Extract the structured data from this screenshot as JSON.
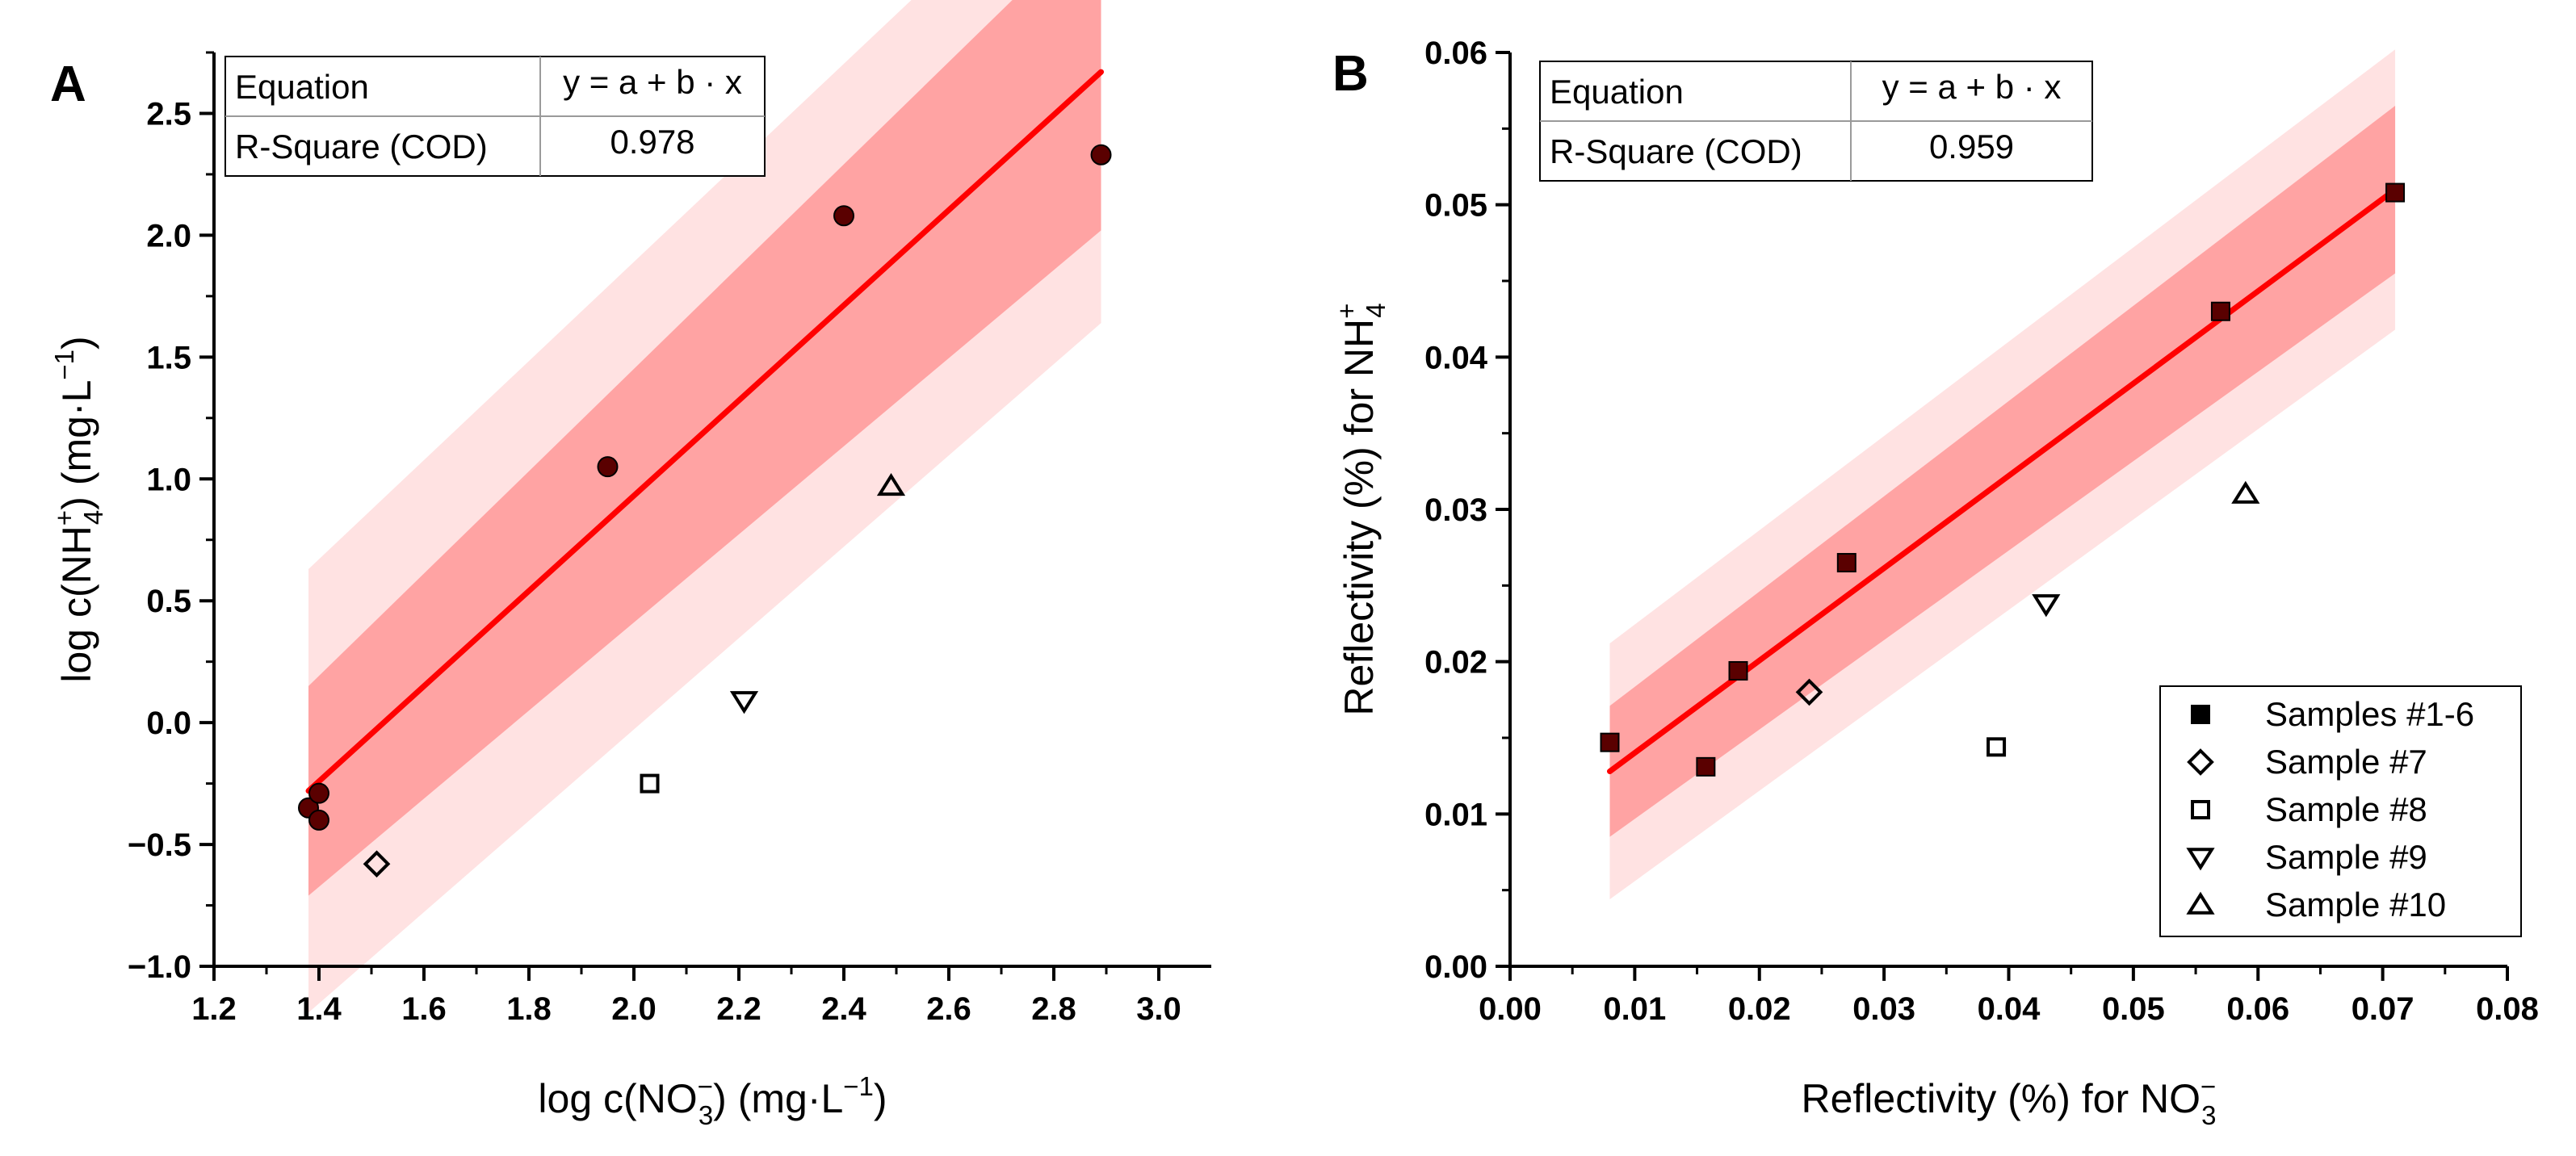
{
  "chart_data": [
    {
      "type": "scatter",
      "panel_label": "A",
      "xlabel": {
        "pre": "log c(NO",
        "sub": "3",
        "sup": "−",
        "post": ") (mg·L",
        "post_sup": "−1",
        "end": ")"
      },
      "ylabel": {
        "pre": "log c(NH",
        "sub": "4",
        "sup": "+",
        "post": ") (mg·L",
        "post_sup": "−1",
        "end": ")"
      },
      "xlim": [
        1.2,
        3.1
      ],
      "ylim": [
        -1.0,
        2.75
      ],
      "xticks": [
        "1.2",
        "1.4",
        "1.6",
        "1.8",
        "2.0",
        "2.2",
        "2.4",
        "2.6",
        "2.8",
        "3.0"
      ],
      "yticks": [
        "−1.0",
        "−0.5",
        "0.0",
        "0.5",
        "1.0",
        "1.5",
        "2.0",
        "2.5"
      ],
      "table": {
        "row1_label": "Equation",
        "row1_value": "y = a + b · x",
        "row2_label": "R-Square (COD)",
        "row2_value": "0.978"
      },
      "fit": {
        "x_start": 1.38,
        "x_end": 2.89,
        "y_start": -0.28,
        "y_end": 2.67,
        "conf_band_half_start": 0.43,
        "conf_band_half_end": 0.65,
        "pred_band_half_start": 0.91,
        "pred_band_half_end": 1.03
      },
      "series": [
        {
          "name": "Samples #1-6",
          "marker": "circle",
          "points": [
            [
              1.38,
              -0.35
            ],
            [
              1.4,
              -0.29
            ],
            [
              1.4,
              -0.4
            ],
            [
              1.95,
              1.05
            ],
            [
              2.4,
              2.08
            ],
            [
              2.89,
              2.33
            ]
          ]
        },
        {
          "name": "Sample #7",
          "marker": "diamond",
          "points": [
            [
              1.51,
              -0.58
            ]
          ]
        },
        {
          "name": "Sample #8",
          "marker": "square-open",
          "points": [
            [
              2.03,
              -0.25
            ]
          ]
        },
        {
          "name": "Sample #9",
          "marker": "triangle-down",
          "points": [
            [
              2.21,
              0.09
            ]
          ]
        },
        {
          "name": "Sample #10",
          "marker": "triangle-up",
          "points": [
            [
              2.49,
              0.97
            ]
          ]
        }
      ]
    },
    {
      "type": "scatter",
      "panel_label": "B",
      "xlabel": {
        "pre": "Reflectivity (%) for NO",
        "sub": "3",
        "sup": "−",
        "post": "",
        "post_sup": "",
        "end": ""
      },
      "ylabel": {
        "pre": "Reflectivity (%) for NH",
        "sub": "4",
        "sup": "+",
        "post": "",
        "post_sup": "",
        "end": ""
      },
      "xlim": [
        0.0,
        0.08
      ],
      "ylim": [
        0.0,
        0.06
      ],
      "xticks": [
        "0.00",
        "0.01",
        "0.02",
        "0.03",
        "0.04",
        "0.05",
        "0.06",
        "0.07",
        "0.08"
      ],
      "yticks": [
        "0.00",
        "0.01",
        "0.02",
        "0.03",
        "0.04",
        "0.05",
        "0.06"
      ],
      "table": {
        "row1_label": "Equation",
        "row1_value": "y = a + b · x",
        "row2_label": "R-Square (COD)",
        "row2_value": "0.959"
      },
      "fit": {
        "x_start": 0.008,
        "x_end": 0.071,
        "y_start": 0.0128,
        "y_end": 0.051,
        "conf_band_half_start": 0.0043,
        "conf_band_half_end": 0.0055,
        "pred_band_half_start": 0.0084,
        "pred_band_half_end": 0.0092
      },
      "series": [
        {
          "name": "Samples #1-6",
          "marker": "square-filled",
          "points": [
            [
              0.008,
              0.0147
            ],
            [
              0.0157,
              0.0131
            ],
            [
              0.0183,
              0.0194
            ],
            [
              0.027,
              0.0265
            ],
            [
              0.057,
              0.043
            ],
            [
              0.071,
              0.0508
            ]
          ]
        },
        {
          "name": "Sample #7",
          "marker": "diamond",
          "points": [
            [
              0.024,
              0.018
            ]
          ]
        },
        {
          "name": "Sample #8",
          "marker": "square-open",
          "points": [
            [
              0.039,
              0.0144
            ]
          ]
        },
        {
          "name": "Sample #9",
          "marker": "triangle-down",
          "points": [
            [
              0.043,
              0.0238
            ]
          ]
        },
        {
          "name": "Sample #10",
          "marker": "triangle-up",
          "points": [
            [
              0.059,
              0.031
            ]
          ]
        }
      ],
      "legend": {
        "position": "bottom-right",
        "entries": [
          "Samples #1-6",
          "Sample #7",
          "Sample #8",
          "Sample #9",
          "Sample #10"
        ]
      }
    }
  ],
  "colors": {
    "fit_line": "#ff0000",
    "conf_band": "#ffa3a3",
    "pred_band": "#ffe2e2",
    "point_fill": "#5a0000",
    "axis": "#000000"
  }
}
